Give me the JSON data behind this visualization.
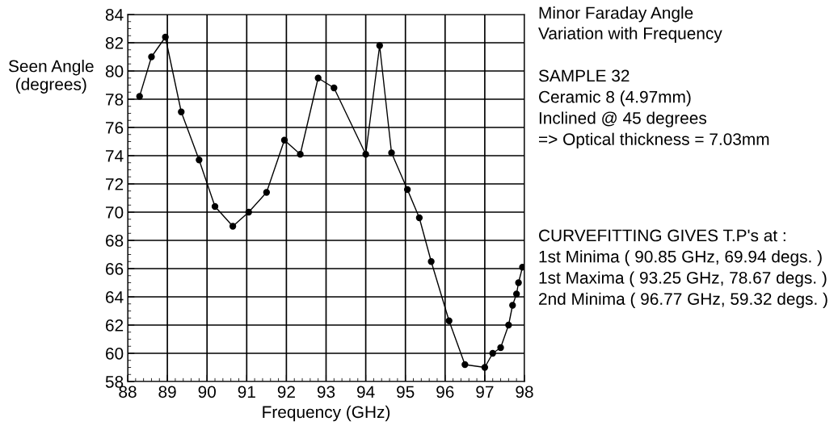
{
  "chart_data": {
    "type": "line",
    "title": "Minor Faraday Angle\nVariation with Frequency",
    "xlabel": "Frequency (GHz)",
    "ylabel": "Seen Angle\n(degrees)",
    "x": [
      88.3,
      88.6,
      88.95,
      89.35,
      89.8,
      90.2,
      90.65,
      91.05,
      91.5,
      91.95,
      92.35,
      92.8,
      93.2,
      94.0,
      94.35,
      94.65,
      95.05,
      95.35,
      95.65,
      96.1,
      96.5,
      97.0,
      97.2,
      97.4,
      97.6,
      97.7,
      97.8,
      97.85,
      97.95
    ],
    "series": [
      {
        "color": "#000000",
        "values": [
          78.2,
          81.0,
          82.4,
          77.1,
          73.7,
          70.4,
          69.0,
          70.0,
          71.4,
          75.1,
          74.1,
          79.5,
          78.8,
          74.1,
          81.8,
          74.2,
          71.6,
          69.6,
          66.5,
          62.3,
          59.2,
          59.0,
          60.0,
          60.4,
          62.0,
          63.4,
          64.2,
          65.0,
          66.1
        ]
      }
    ],
    "xlim": [
      88,
      98
    ],
    "xticks": [
      88,
      89,
      90,
      91,
      92,
      93,
      94,
      95,
      96,
      97,
      98
    ],
    "ylim": [
      58,
      84
    ],
    "yticks": [
      58,
      60,
      62,
      64,
      66,
      68,
      70,
      72,
      74,
      76,
      78,
      80,
      82,
      84
    ],
    "grid": true,
    "marker": "circle",
    "line_style": "solid",
    "annotations": [
      "SAMPLE 32\nCeramic 8 (4.97mm)\nInclined @ 45 degrees\n=> Optical thickness = 7.03mm",
      "CURVEFITTING GIVES T.P's at :\n1st Minima ( 90.85 GHz, 69.94 degs. )\n1st Maxima ( 93.25 GHz, 78.67 degs. )\n2nd Minima ( 96.77 GHz, 59.32 degs. )"
    ]
  }
}
